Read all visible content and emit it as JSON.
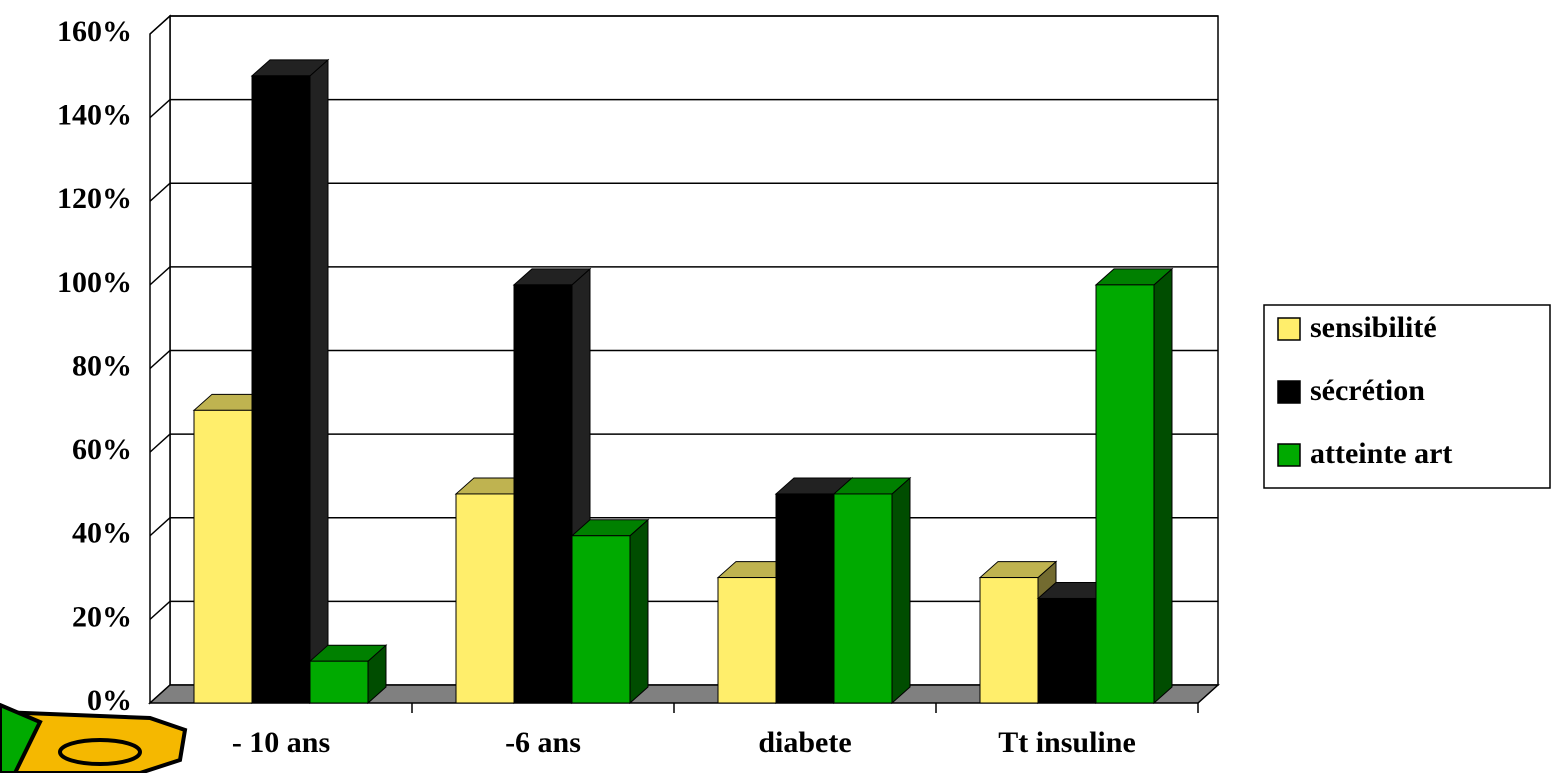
{
  "chart_data": {
    "type": "bar3d",
    "categories": [
      "- 10 ans",
      "-6 ans",
      "diabete",
      "Tt insuline"
    ],
    "series": [
      {
        "name": "sensibilité",
        "color": "#ffee6b",
        "values": [
          70,
          50,
          30,
          30
        ]
      },
      {
        "name": "sécrétion",
        "color": "#000000",
        "values": [
          150,
          100,
          50,
          25
        ]
      },
      {
        "name": "atteinte art",
        "color": "#00aa00",
        "values": [
          10,
          40,
          50,
          100
        ]
      }
    ],
    "ylim": [
      0,
      160
    ],
    "yticks": [
      {
        "value": 0,
        "label": "0%"
      },
      {
        "value": 20,
        "label": "20%"
      },
      {
        "value": 40,
        "label": "40%"
      },
      {
        "value": 60,
        "label": "60%"
      },
      {
        "value": 80,
        "label": "80%"
      },
      {
        "value": 100,
        "label": "100%"
      },
      {
        "value": 120,
        "label": "120%"
      },
      {
        "value": 140,
        "label": "140%"
      },
      {
        "value": 160,
        "label": "160%"
      }
    ],
    "grid": true,
    "legend": "right"
  }
}
